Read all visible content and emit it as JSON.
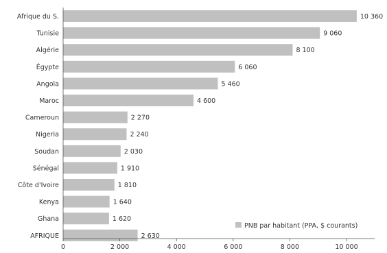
{
  "chart_data": {
    "type": "bar",
    "orientation": "horizontal",
    "categories": [
      "Afrique du S.",
      "Tunisie",
      "Algérie",
      "Égypte",
      "Angola",
      "Maroc",
      "Cameroun",
      "Nigeria",
      "Soudan",
      "Sénégal",
      "Côte d'Ivoire",
      "Kenya",
      "Ghana",
      "AFRIQUE"
    ],
    "values": [
      10360,
      9060,
      8100,
      6060,
      5460,
      4600,
      2270,
      2240,
      2030,
      1910,
      1810,
      1640,
      1620,
      2630
    ],
    "value_labels": [
      "10 360",
      "9 060",
      "8 100",
      "6 060",
      "5 460",
      "4 600",
      "2 270",
      "2 240",
      "2 030",
      "1 910",
      "1 810",
      "1 640",
      "1 620",
      "2 630"
    ],
    "series": [
      {
        "name": "PNB par habitant (PPA, $ courants)",
        "values": [
          10360,
          9060,
          8100,
          6060,
          5460,
          4600,
          2270,
          2240,
          2030,
          1910,
          1810,
          1640,
          1620,
          2630
        ]
      }
    ],
    "xlim": [
      0,
      11000
    ],
    "x_ticks": [
      0,
      2000,
      4000,
      6000,
      8000,
      10000
    ],
    "x_tick_labels": [
      "0",
      "2 000",
      "4 000",
      "6 000",
      "8 000",
      "10 000"
    ],
    "legend": {
      "position": "bottom-right",
      "label": "PNB par habitant (PPA, $ courants)"
    },
    "grid": false,
    "bar_color": "#c0c0c0",
    "title": "",
    "xlabel": "",
    "ylabel": ""
  }
}
